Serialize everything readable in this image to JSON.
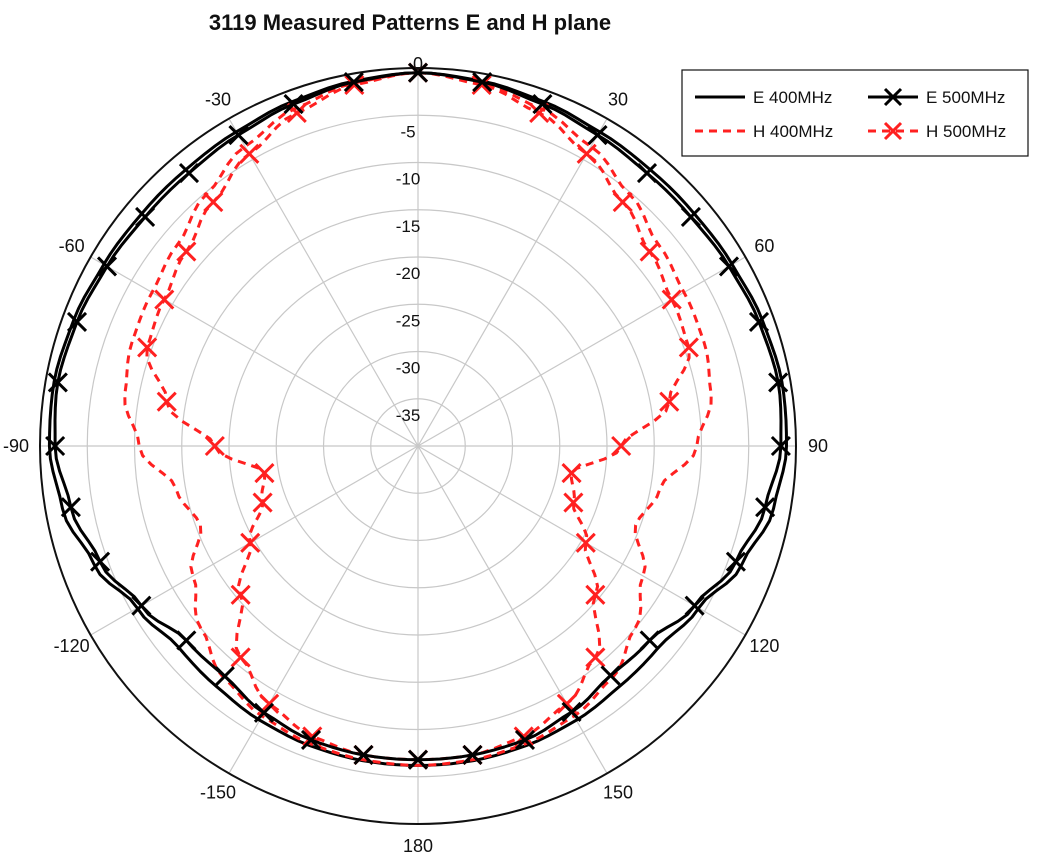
{
  "chart_data": {
    "type": "polar-line",
    "title": "3119 Measured Patterns E and H plane",
    "angle_ticks": [
      "0",
      "30",
      "60",
      "90",
      "120",
      "150",
      "180",
      "-150",
      "-120",
      "-90",
      "-60",
      "-30"
    ],
    "angle_tick_values": [
      0,
      30,
      60,
      90,
      120,
      150,
      180,
      -150,
      -120,
      -90,
      -60,
      -30
    ],
    "radial_ticks": [
      "-5",
      "-10",
      "-15",
      "-20",
      "-25",
      "-30",
      "-35"
    ],
    "radial_tick_values": [
      -5,
      -10,
      -15,
      -20,
      -25,
      -30,
      -35
    ],
    "rlim": [
      -40,
      0
    ],
    "grid": true,
    "legend_position": "top-right",
    "angles": [
      0,
      10,
      20,
      30,
      40,
      50,
      60,
      70,
      80,
      90,
      100,
      110,
      120,
      130,
      140,
      150,
      160,
      170,
      180,
      -170,
      -160,
      -150,
      -140,
      -130,
      -120,
      -110,
      -100,
      -90,
      -80,
      -70,
      -60,
      -50,
      -40,
      -30,
      -20,
      -10
    ],
    "series": [
      {
        "name": "E 400MHz",
        "color": "#000000",
        "style": "solid",
        "marker": "none",
        "values": [
          -0.5,
          -0.8,
          -1.2,
          -1.6,
          -1.8,
          -1.8,
          -1.6,
          -1.2,
          -0.9,
          -1.0,
          -1.8,
          -3.5,
          -5.7,
          -6.8,
          -6.8,
          -6.5,
          -6.3,
          -6.2,
          -6.2,
          -6.2,
          -6.3,
          -6.5,
          -6.8,
          -6.9,
          -5.7,
          -3.5,
          -1.8,
          -1.0,
          -0.9,
          -1.2,
          -1.6,
          -1.8,
          -1.8,
          -1.6,
          -1.2,
          -0.8
        ]
      },
      {
        "name": "E 500MHz",
        "color": "#000000",
        "style": "solid",
        "marker": "x",
        "values": [
          -0.5,
          -0.9,
          -1.5,
          -2.0,
          -2.3,
          -2.3,
          -2.0,
          -1.6,
          -1.3,
          -1.6,
          -2.7,
          -4.2,
          -6.2,
          -8.0,
          -8.3,
          -7.5,
          -6.9,
          -6.8,
          -6.8,
          -6.8,
          -6.9,
          -7.4,
          -8.2,
          -8.0,
          -6.2,
          -4.2,
          -2.7,
          -1.6,
          -1.3,
          -1.6,
          -2.0,
          -2.3,
          -2.3,
          -2.0,
          -1.5,
          -0.9
        ]
      },
      {
        "name": "H 400MHz",
        "color": "#ff2020",
        "style": "dashed",
        "marker": "none",
        "values": [
          -0.5,
          -1.0,
          -2.0,
          -3.4,
          -5.2,
          -6.8,
          -7.5,
          -7.8,
          -8.5,
          -10.5,
          -14.0,
          -15.5,
          -12.5,
          -10.0,
          -8.0,
          -7.0,
          -6.5,
          -6.3,
          -6.2,
          -6.3,
          -6.5,
          -7.0,
          -8.0,
          -10.0,
          -12.5,
          -15.5,
          -14.0,
          -10.5,
          -8.5,
          -7.8,
          -7.5,
          -6.8,
          -5.2,
          -3.4,
          -2.0,
          -1.0
        ]
      },
      {
        "name": "H 500MHz",
        "color": "#ff2020",
        "style": "dashed",
        "marker": "x",
        "values": [
          -0.5,
          -1.2,
          -2.5,
          -4.3,
          -6.3,
          -8.0,
          -9.0,
          -9.5,
          -13.0,
          -18.5,
          -23.5,
          -22.5,
          -19.5,
          -15.5,
          -10.8,
          -8.5,
          -7.3,
          -6.8,
          -6.8,
          -6.8,
          -7.3,
          -8.5,
          -10.8,
          -15.5,
          -19.5,
          -22.5,
          -23.5,
          -18.5,
          -13.0,
          -9.5,
          -9.0,
          -8.0,
          -6.3,
          -4.3,
          -2.5,
          -1.2
        ]
      }
    ]
  }
}
